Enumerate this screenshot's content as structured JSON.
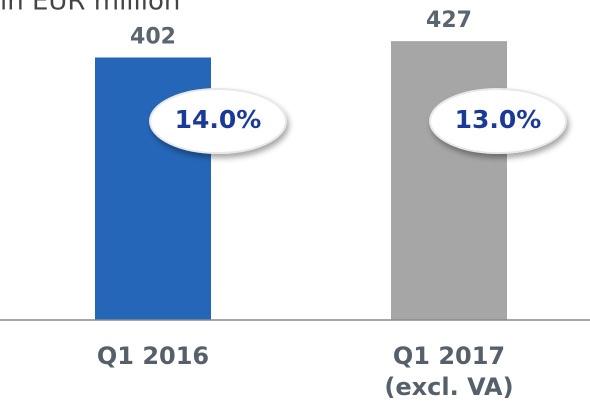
{
  "chart_data": {
    "type": "bar",
    "title": "in EUR million",
    "categories": [
      "Q1 2016",
      "Q1 2017\n(excl. VA)"
    ],
    "values": [
      402,
      427
    ],
    "colors": [
      "#2566b8",
      "#a6a6a6"
    ],
    "ylim": [
      0,
      490
    ],
    "badges": {
      "values": [
        14.0,
        13.0
      ],
      "value_labels": [
        "14.0%",
        "13.0%"
      ]
    }
  }
}
